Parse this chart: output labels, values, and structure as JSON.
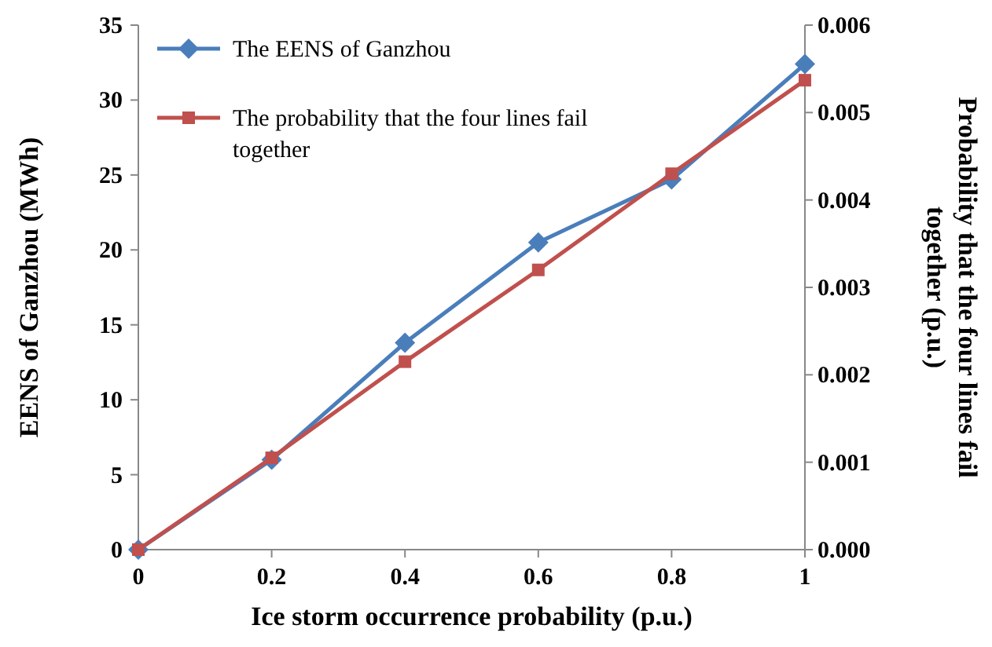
{
  "chart_data": {
    "type": "line",
    "xlabel": "Ice storm occurrence probability (p.u.)",
    "ylabel": "EENS of Ganzhou (MWh)",
    "y2label": "Probability that the four lines fail together (p.u.)",
    "x": [
      0,
      0.2,
      0.4,
      0.6,
      0.8,
      1
    ],
    "series": [
      {
        "name": "The EENS of Ganzhou",
        "color": "#4a7ebb",
        "marker": "diamond",
        "values": [
          0,
          6,
          13.8,
          20.5,
          24.7,
          32.4
        ]
      },
      {
        "name": "The probability that the four lines fail together",
        "color": "#c0504d",
        "marker": "square",
        "axis": "y2",
        "values": [
          0,
          0.00105,
          0.00215,
          0.0032,
          0.0043,
          0.00537
        ]
      }
    ],
    "xlim": [
      0,
      1
    ],
    "xticks": [
      0,
      0.2,
      0.4,
      0.6,
      0.8,
      1
    ],
    "ylim": [
      0,
      35
    ],
    "yticks": [
      0,
      5,
      10,
      15,
      20,
      25,
      30,
      35
    ],
    "y2lim": [
      0,
      0.006
    ],
    "y2ticks": [
      {
        "value": 0,
        "label": "0.000"
      },
      {
        "value": 0.001,
        "label": "0.001"
      },
      {
        "value": 0.002,
        "label": "0.002"
      },
      {
        "value": 0.003,
        "label": "0.003"
      },
      {
        "value": 0.004,
        "label": "0.004"
      },
      {
        "value": 0.005,
        "label": "0.005"
      },
      {
        "value": 0.006,
        "label": "0.006"
      }
    ],
    "legend": "top left",
    "grid": false,
    "line_style": "solid"
  }
}
